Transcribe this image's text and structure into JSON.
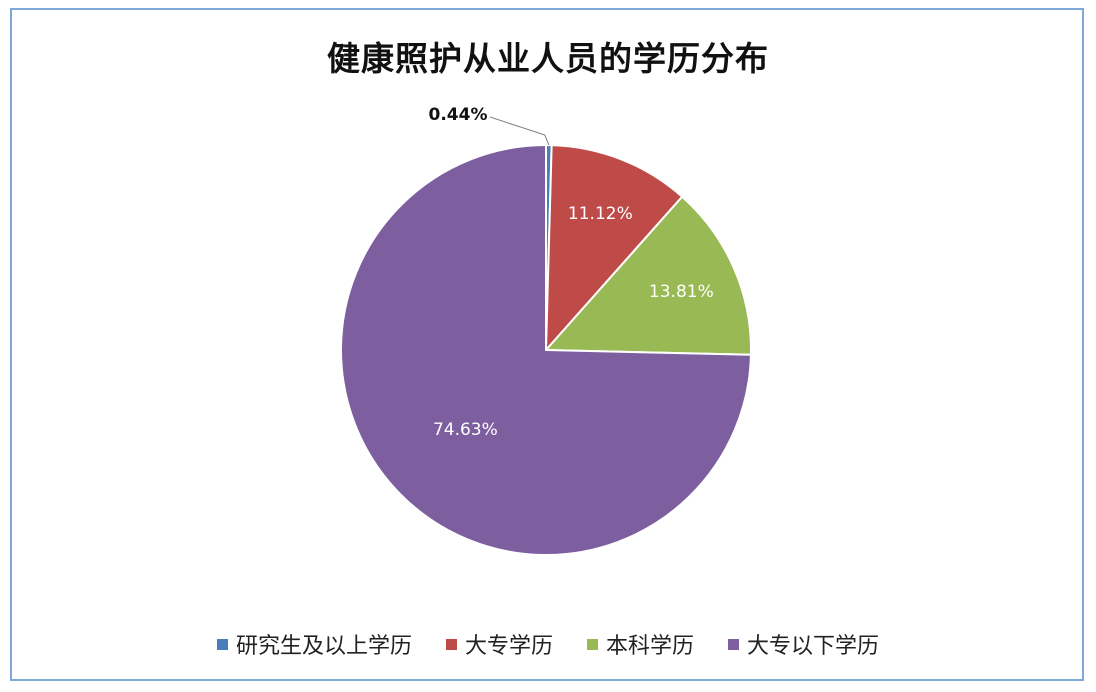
{
  "chart_data": {
    "type": "pie",
    "title": "健康照护从业人员的学历分布",
    "categories": [
      "研究生及以上学历",
      "大专学历",
      "本科学历",
      "大专以下学历"
    ],
    "values": [
      0.44,
      11.12,
      13.81,
      74.63
    ],
    "labels": [
      "0.44%",
      "11.12%",
      "13.81%",
      "74.63%"
    ],
    "colors": [
      "#4a7ebb",
      "#be4b48",
      "#98b954",
      "#7d5fa0"
    ],
    "legend_position": "bottom"
  }
}
